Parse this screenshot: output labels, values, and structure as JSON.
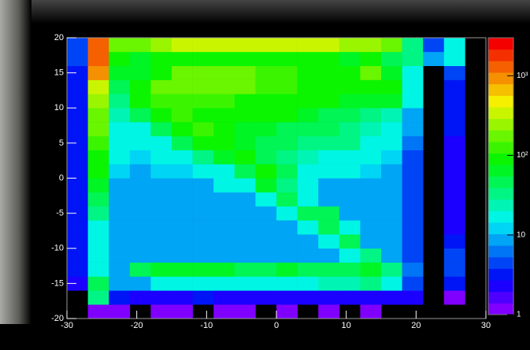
{
  "chart_data": {
    "type": "heatmap",
    "xlim": [
      -30,
      30
    ],
    "ylim": [
      -20,
      20
    ],
    "zlim": [
      1,
      3000
    ],
    "zlog": true,
    "xticks": [
      -30,
      -20,
      -10,
      0,
      10,
      20,
      30
    ],
    "yticks": [
      -20,
      -15,
      -10,
      -5,
      0,
      5,
      10,
      15,
      20
    ],
    "zticks": [
      1,
      10,
      {
        "value": 100,
        "label": "10²"
      },
      {
        "value": 1000,
        "label": "10³"
      }
    ],
    "xbins": [
      -30,
      -27,
      -24,
      -21,
      -18,
      -15,
      -12,
      -9,
      -6,
      -3,
      0,
      3,
      6,
      9,
      12,
      15,
      18,
      21,
      24,
      27,
      30
    ],
    "ybins": [
      -20,
      -18,
      -16,
      -14,
      -12,
      -10,
      -8,
      -6,
      -4,
      -2,
      0,
      2,
      4,
      6,
      8,
      10,
      12,
      14,
      16,
      18,
      20
    ],
    "z": [
      [
        null,
        1,
        1,
        null,
        1,
        1,
        null,
        1,
        1,
        null,
        1,
        null,
        1,
        null,
        1,
        null,
        null,
        null,
        null,
        null
      ],
      [
        null,
        30,
        3,
        2,
        2,
        2,
        3,
        2,
        2,
        2,
        2,
        2,
        2,
        2,
        2,
        2,
        2,
        null,
        1,
        null
      ],
      [
        2,
        40,
        8,
        10,
        15,
        20,
        20,
        20,
        20,
        20,
        20,
        20,
        25,
        25,
        30,
        15,
        5,
        null,
        3,
        null
      ],
      [
        3,
        20,
        10,
        40,
        60,
        60,
        60,
        60,
        50,
        50,
        60,
        50,
        50,
        50,
        60,
        30,
        6,
        null,
        4,
        null
      ],
      [
        3,
        15,
        8,
        8,
        8,
        8,
        8,
        8,
        8,
        8,
        8,
        8,
        10,
        15,
        30,
        10,
        5,
        null,
        5,
        null
      ],
      [
        3,
        15,
        8,
        8,
        8,
        8,
        8,
        8,
        8,
        8,
        8,
        10,
        20,
        40,
        10,
        8,
        4,
        null,
        3,
        null
      ],
      [
        3,
        20,
        8,
        8,
        8,
        8,
        8,
        8,
        8,
        8,
        10,
        20,
        50,
        15,
        8,
        8,
        4,
        null,
        2,
        null
      ],
      [
        3,
        30,
        8,
        8,
        8,
        8,
        8,
        8,
        8,
        10,
        20,
        40,
        40,
        10,
        8,
        8,
        4,
        null,
        2,
        null
      ],
      [
        3,
        40,
        10,
        8,
        8,
        8,
        8,
        10,
        10,
        20,
        40,
        15,
        10,
        10,
        8,
        8,
        4,
        null,
        2,
        null
      ],
      [
        3,
        60,
        10,
        8,
        8,
        10,
        10,
        15,
        20,
        60,
        30,
        15,
        10,
        10,
        8,
        8,
        4,
        null,
        2,
        null
      ],
      [
        3,
        80,
        12,
        10,
        12,
        12,
        15,
        20,
        40,
        80,
        40,
        20,
        15,
        15,
        12,
        10,
        5,
        null,
        2,
        null
      ],
      [
        3,
        100,
        15,
        12,
        15,
        20,
        30,
        60,
        80,
        40,
        30,
        25,
        20,
        20,
        15,
        12,
        5,
        null,
        2,
        null
      ],
      [
        3,
        120,
        15,
        15,
        20,
        40,
        80,
        100,
        60,
        40,
        40,
        30,
        30,
        30,
        20,
        15,
        6,
        null,
        2,
        null
      ],
      [
        3,
        150,
        20,
        20,
        40,
        80,
        120,
        80,
        60,
        60,
        50,
        40,
        40,
        30,
        25,
        20,
        8,
        null,
        3,
        null
      ],
      [
        3,
        200,
        25,
        40,
        80,
        120,
        100,
        100,
        80,
        80,
        80,
        60,
        50,
        40,
        30,
        25,
        10,
        null,
        3,
        null
      ],
      [
        3,
        250,
        30,
        80,
        120,
        120,
        120,
        120,
        100,
        100,
        100,
        80,
        80,
        60,
        60,
        60,
        15,
        null,
        3,
        null
      ],
      [
        3,
        400,
        40,
        100,
        150,
        150,
        150,
        150,
        150,
        120,
        120,
        100,
        100,
        80,
        100,
        80,
        20,
        null,
        3,
        null
      ],
      [
        3,
        800,
        60,
        60,
        100,
        150,
        150,
        150,
        150,
        120,
        120,
        100,
        100,
        80,
        150,
        60,
        20,
        null,
        5,
        null
      ],
      [
        5,
        1500,
        100,
        60,
        80,
        100,
        100,
        100,
        100,
        100,
        100,
        80,
        80,
        60,
        80,
        50,
        30,
        10,
        20,
        null
      ],
      [
        5,
        1500,
        200,
        200,
        250,
        300,
        300,
        300,
        300,
        300,
        300,
        300,
        300,
        250,
        250,
        200,
        30,
        5,
        20,
        null
      ]
    ]
  }
}
